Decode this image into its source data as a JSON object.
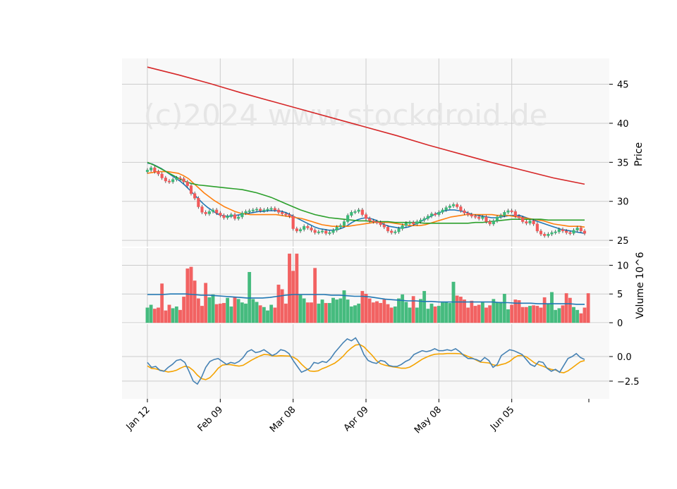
{
  "watermark": "(c)2024 www.stockdroid.de",
  "chart_data": {
    "type": "candlestick",
    "x_tick_labels": [
      "Jan 12",
      "Feb 09",
      "Mar 08",
      "Apr 09",
      "May 08",
      "Jun 05"
    ],
    "x_tick_index": [
      0,
      20,
      40,
      60,
      80,
      100
    ],
    "n_bars": 121,
    "grid": true,
    "colors": {
      "up": "#3cb878",
      "down": "#f25a5a",
      "ma_fast": "#1f77b4",
      "ma_mid": "#ff7f0e",
      "ma_slow": "#2ca02c",
      "ma_long": "#d62728",
      "macd": "#4682b4",
      "signal": "#f4a300",
      "panel_bg": "#f8f8f8"
    },
    "price_panel": {
      "ylabel": "Price",
      "ylim": [
        24.2,
        48.3
      ],
      "yticks": [
        25,
        30,
        35,
        40,
        45
      ],
      "closes": [
        34.0,
        34.3,
        33.8,
        33.5,
        33.0,
        32.6,
        32.5,
        32.8,
        33.0,
        32.9,
        32.5,
        32.0,
        31.0,
        30.4,
        29.3,
        28.6,
        28.4,
        28.7,
        28.9,
        28.5,
        28.2,
        27.9,
        28.1,
        28.3,
        27.8,
        28.0,
        28.5,
        28.7,
        28.8,
        28.9,
        29.0,
        28.8,
        28.9,
        29.0,
        29.1,
        28.9,
        28.6,
        28.4,
        28.3,
        28.1,
        26.5,
        26.2,
        26.4,
        26.8,
        26.6,
        26.3,
        26.0,
        26.1,
        26.2,
        25.9,
        26.0,
        26.3,
        26.7,
        26.9,
        27.4,
        28.2,
        28.6,
        28.7,
        28.9,
        28.3,
        27.8,
        27.5,
        27.4,
        27.3,
        27.0,
        26.7,
        26.2,
        26.0,
        26.1,
        26.5,
        26.9,
        27.2,
        27.3,
        27.1,
        27.4,
        27.6,
        27.8,
        28.1,
        28.4,
        28.3,
        28.6,
        28.9,
        29.2,
        29.4,
        29.6,
        29.3,
        28.8,
        28.5,
        28.3,
        28.1,
        28.0,
        27.8,
        28.0,
        27.4,
        27.1,
        27.5,
        28.0,
        28.2,
        28.6,
        28.8,
        28.7,
        28.1,
        27.9,
        27.4,
        27.2,
        27.5,
        27.1,
        26.2,
        25.8,
        25.6,
        25.8,
        26.0,
        26.1,
        26.4,
        26.2,
        26.0,
        25.9,
        26.3,
        26.6,
        26.2,
        25.9
      ],
      "moving_averages": [
        {
          "color_key": "ma_fast",
          "values": [
            34.9,
            34.8,
            34.5,
            34.2,
            33.8,
            33.4,
            33.0,
            32.6,
            32.1,
            31.5,
            30.9,
            30.3,
            29.7,
            29.2,
            28.8,
            28.4,
            28.2,
            28.1,
            28.1,
            28.2,
            28.3,
            28.4,
            28.5,
            28.6,
            28.7,
            28.7,
            28.8,
            28.8,
            28.8,
            28.7,
            28.5,
            28.2,
            27.9,
            27.6,
            27.3,
            27.0,
            26.7,
            26.5,
            26.4,
            26.3,
            26.3,
            26.4,
            26.6,
            26.9,
            27.3,
            27.6,
            27.8,
            27.9,
            27.8,
            27.6,
            27.3,
            27.0,
            26.8,
            26.7,
            26.6,
            26.6,
            26.7,
            26.9,
            27.2,
            27.5,
            27.8,
            28.1,
            28.4,
            28.6,
            28.8,
            28.9,
            28.9,
            28.8,
            28.7,
            28.5,
            28.3,
            28.2,
            28.1,
            28.0,
            27.9,
            27.9,
            28.0,
            28.1,
            28.2,
            28.2,
            28.2,
            28.0,
            27.8,
            27.6,
            27.4,
            27.2,
            27.0,
            26.8,
            26.6,
            26.4,
            26.3,
            26.2,
            26.1,
            26.0,
            25.9
          ]
        },
        {
          "color_key": "ma_mid",
          "values": [
            33.6,
            33.7,
            33.8,
            33.8,
            33.8,
            33.7,
            33.6,
            33.3,
            32.9,
            32.3,
            31.7,
            31.1,
            30.6,
            30.1,
            29.7,
            29.3,
            29.0,
            28.7,
            28.5,
            28.4,
            28.3,
            28.3,
            28.3,
            28.3,
            28.3,
            28.3,
            28.2,
            28.1,
            28.0,
            27.9,
            27.8,
            27.6,
            27.4,
            27.2,
            27.0,
            26.9,
            26.8,
            26.8,
            26.8,
            26.8,
            26.9,
            27.0,
            27.1,
            27.2,
            27.3,
            27.3,
            27.3,
            27.3,
            27.2,
            27.1,
            27.0,
            26.9,
            26.9,
            26.9,
            27.0,
            27.2,
            27.4,
            27.6,
            27.8,
            28.0,
            28.1,
            28.2,
            28.3,
            28.3,
            28.3,
            28.3,
            28.3,
            28.3,
            28.2,
            28.2,
            28.2,
            28.1,
            28.0,
            27.9,
            27.8,
            27.7,
            27.6,
            27.5,
            27.3,
            27.1,
            27.0,
            26.9,
            26.8,
            26.8,
            26.8,
            26.7
          ]
        },
        {
          "color_key": "ma_slow",
          "values": [
            35.0,
            34.6,
            34.1,
            33.6,
            33.1,
            32.6,
            32.3,
            32.1,
            32.0,
            31.9,
            31.8,
            31.7,
            31.6,
            31.5,
            31.3,
            31.1,
            30.8,
            30.5,
            30.1,
            29.7,
            29.3,
            28.9,
            28.6,
            28.3,
            28.1,
            27.9,
            27.8,
            27.7,
            27.6,
            27.5,
            27.5,
            27.4,
            27.4,
            27.4,
            27.3,
            27.3,
            27.3,
            27.3,
            27.2,
            27.2,
            27.2,
            27.2,
            27.2,
            27.2,
            27.2,
            27.3,
            27.3,
            27.4,
            27.5,
            27.6,
            27.7,
            27.7,
            27.7,
            27.7,
            27.7,
            27.6,
            27.6,
            27.6,
            27.6,
            27.6,
            27.6
          ]
        },
        {
          "color_key": "ma_long",
          "values": [
            47.2,
            46.2,
            45.1,
            43.9,
            42.8,
            41.7,
            40.6,
            39.5,
            38.4,
            37.2,
            36.1,
            35.0,
            34.0,
            33.0,
            32.2
          ]
        }
      ]
    },
    "volume_panel": {
      "ylabel": "Volume  10^6",
      "ylim": [
        0,
        13
      ],
      "yticks": [
        0,
        5,
        10
      ],
      "volumes": [
        2.6,
        3.1,
        2.4,
        2.6,
        6.8,
        2.1,
        3.1,
        2.5,
        2.8,
        2.2,
        4.5,
        9.4,
        9.7,
        7.3,
        4.2,
        2.9,
        6.9,
        4.4,
        4.9,
        3.2,
        3.3,
        3.4,
        4.3,
        2.8,
        4.5,
        4.1,
        3.5,
        3.3,
        8.8,
        4.1,
        3.6,
        3.0,
        2.7,
        2.1,
        3.1,
        2.6,
        6.6,
        5.8,
        3.3,
        12.0,
        9.0,
        12.0,
        4.8,
        4.2,
        3.5,
        3.5,
        9.5,
        3.3,
        4.0,
        3.4,
        3.4,
        4.3,
        4.0,
        4.2,
        5.6,
        4.0,
        2.8,
        3.0,
        3.3,
        5.5,
        5.0,
        4.2,
        3.5,
        3.7,
        3.4,
        4.0,
        3.2,
        2.6,
        2.8,
        4.2,
        4.9,
        3.6,
        2.6,
        4.6,
        2.6,
        4.1,
        5.5,
        2.4,
        3.3,
        2.8,
        2.9,
        3.5,
        3.6,
        3.4,
        7.1,
        4.7,
        4.5,
        4.0,
        2.6,
        3.8,
        2.9,
        3.1,
        3.5,
        2.6,
        3.0,
        4.1,
        3.6,
        3.6,
        5.0,
        2.3,
        3.1,
        4.0,
        3.9,
        2.7,
        2.7,
        2.9,
        3.0,
        2.9,
        2.6,
        4.4,
        3.2,
        5.3,
        2.2,
        2.5,
        3.0,
        5.1,
        4.3,
        2.7,
        2.2,
        1.6,
        2.6,
        5.1
      ],
      "volume_ma": [
        4.9,
        4.9,
        4.9,
        5.0,
        5.0,
        5.0,
        4.9,
        4.8,
        4.8,
        4.7,
        4.6,
        4.5,
        4.4,
        4.3,
        4.3,
        4.3,
        4.4,
        4.6,
        4.8,
        4.9,
        4.9,
        4.9,
        4.9,
        4.9,
        4.8,
        4.8,
        4.7,
        4.6,
        4.6,
        4.5,
        4.3,
        4.1,
        4.0,
        3.9,
        3.8,
        3.8,
        3.7,
        3.7,
        3.6,
        3.6,
        3.6,
        3.6,
        3.6,
        3.6,
        3.6,
        3.6,
        3.5,
        3.5,
        3.4,
        3.4,
        3.4,
        3.3,
        3.3,
        3.3,
        3.3,
        3.3,
        3.2,
        3.2
      ]
    },
    "macd_panel": {
      "ylim": [
        -4.3,
        3.3
      ],
      "yticks": [
        -2.5,
        0.0
      ],
      "ytick_labels": [
        "−2.5",
        "0.0"
      ],
      "macd": [
        -0.6,
        -1.1,
        -1.0,
        -1.4,
        -1.5,
        -1.1,
        -0.8,
        -0.4,
        -0.3,
        -0.6,
        -1.5,
        -2.5,
        -2.8,
        -2.1,
        -1.1,
        -0.5,
        -0.3,
        -0.2,
        -0.5,
        -0.8,
        -0.6,
        -0.7,
        -0.5,
        -0.1,
        0.5,
        0.7,
        0.4,
        0.5,
        0.7,
        0.4,
        0.1,
        0.3,
        0.7,
        0.6,
        0.3,
        -0.4,
        -1.0,
        -1.6,
        -1.4,
        -1.2,
        -0.6,
        -0.7,
        -0.5,
        -0.6,
        -0.2,
        0.4,
        0.9,
        1.4,
        1.8,
        1.6,
        1.9,
        1.2,
        0.2,
        -0.4,
        -0.6,
        -0.7,
        -0.4,
        -0.5,
        -0.9,
        -1.0,
        -1.0,
        -0.8,
        -0.5,
        -0.3,
        0.2,
        0.4,
        0.6,
        0.5,
        0.6,
        0.8,
        0.6,
        0.6,
        0.7,
        0.6,
        0.8,
        0.5,
        0.1,
        -0.2,
        -0.2,
        -0.3,
        -0.5,
        -0.1,
        -0.4,
        -1.1,
        -0.8,
        0.1,
        0.4,
        0.7,
        0.6,
        0.4,
        0.2,
        -0.3,
        -0.8,
        -1.0,
        -0.5,
        -0.6,
        -1.2,
        -1.5,
        -1.3,
        -1.6,
        -0.9,
        -0.2,
        0.0,
        0.3,
        -0.1,
        -0.3
      ]
    }
  }
}
